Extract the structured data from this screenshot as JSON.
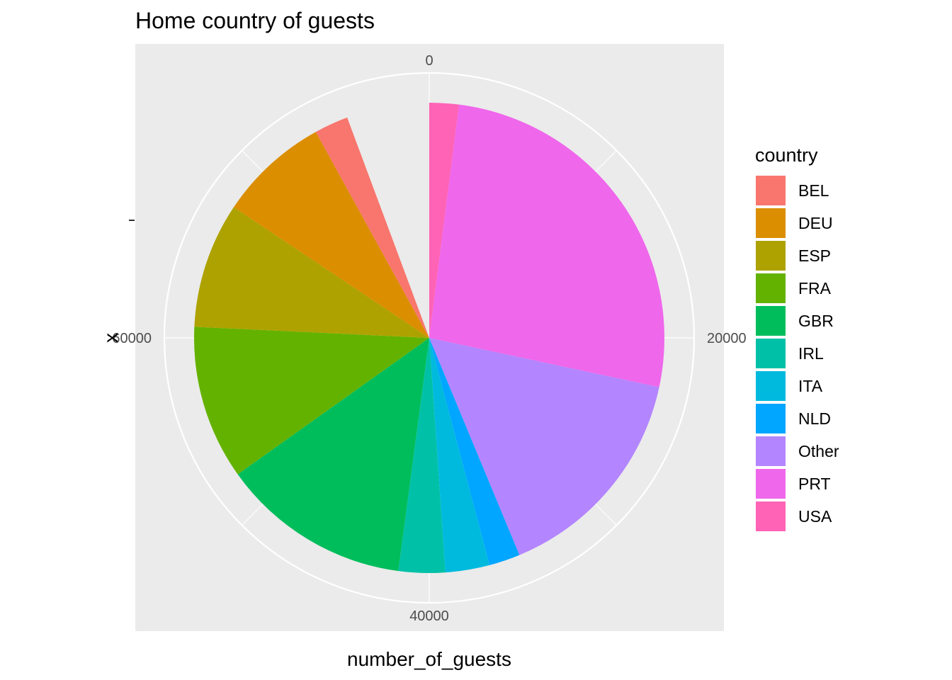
{
  "chart_data": {
    "type": "pie",
    "title": "Home country of guests",
    "xlabel": "number_of_guests",
    "ylabel": "x",
    "y_tick_label": "-",
    "theta_range": [
      0,
      80000
    ],
    "theta_ticks": [
      {
        "value": 0,
        "label": "0"
      },
      {
        "value": 20000,
        "label": "20000"
      },
      {
        "value": 40000,
        "label": "40000"
      },
      {
        "value": 60000,
        "label": "60000"
      }
    ],
    "legend_title": "country",
    "legend_position": "right",
    "grid": true,
    "categories": [
      "BEL",
      "DEU",
      "ESP",
      "FRA",
      "GBR",
      "IRL",
      "ITA",
      "NLD",
      "Other",
      "PRT",
      "USA"
    ],
    "colors": [
      "#F8766D",
      "#DB8E00",
      "#AEA200",
      "#64B200",
      "#00BD5C",
      "#00C1A7",
      "#00BADE",
      "#00A6FF",
      "#B385FF",
      "#EF67EB",
      "#FF63B6"
    ],
    "values": [
      1870,
      6090,
      6900,
      8480,
      10440,
      2550,
      2430,
      1710,
      12300,
      21070,
      1620
    ],
    "stack_order": [
      "USA",
      "PRT",
      "Other",
      "NLD",
      "ITA",
      "IRL",
      "GBR",
      "FRA",
      "ESP",
      "DEU",
      "BEL"
    ],
    "total": 75460
  }
}
